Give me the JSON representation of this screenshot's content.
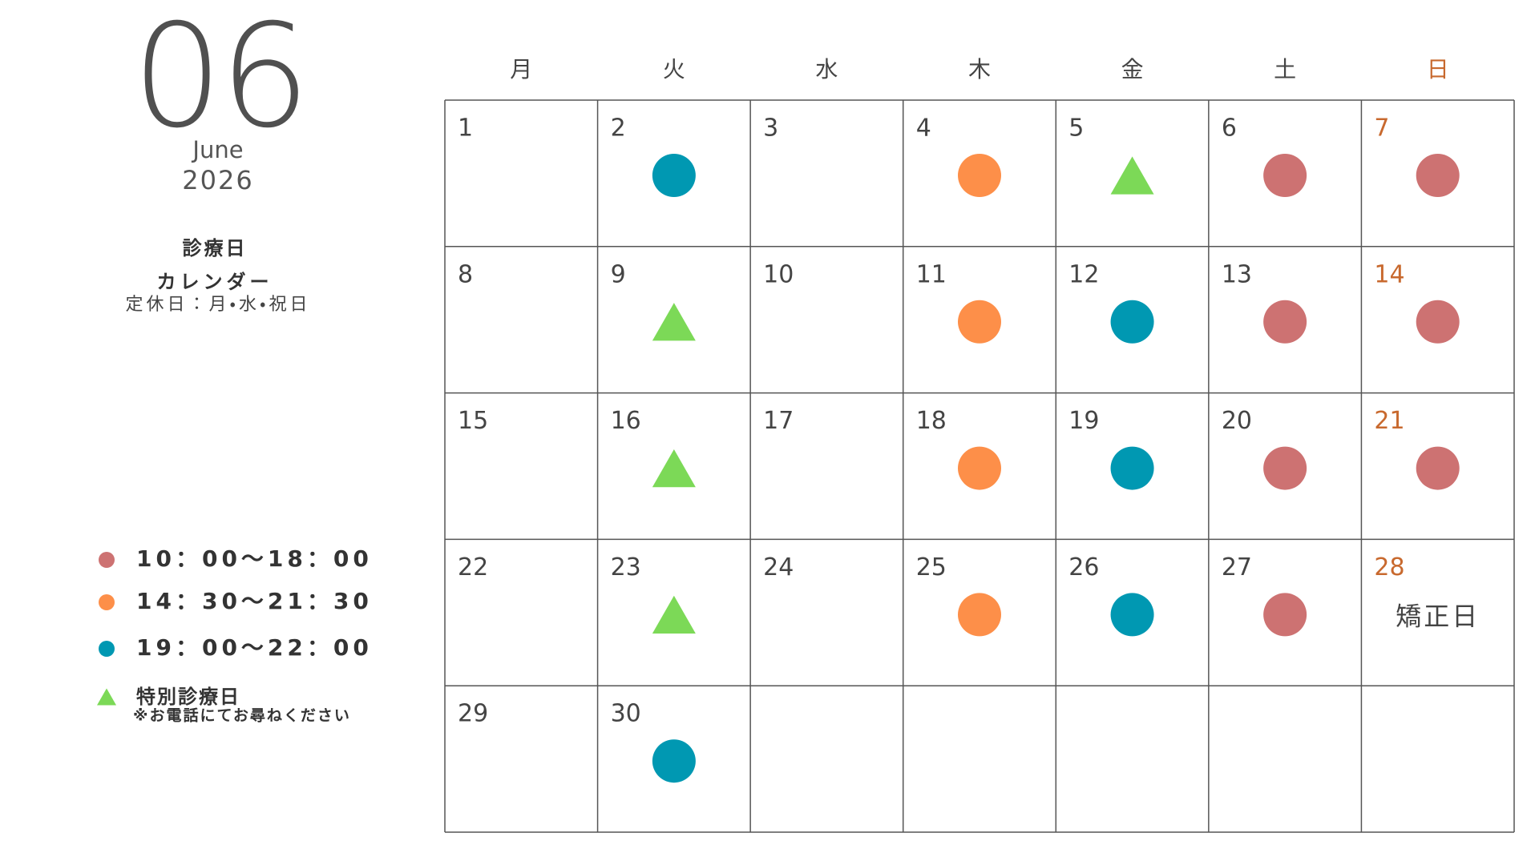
{
  "header": {
    "month": "06",
    "month_name": "June",
    "year": "2026",
    "title_line1": "診療日",
    "title_line2": "カレンダー",
    "closed_days": "定休日：月・水・祝日"
  },
  "legend": [
    {
      "label": "10：00〜18：00",
      "shape": "circle",
      "color": "#cd7272",
      "days": [
        6,
        7,
        13,
        14,
        20,
        21,
        27
      ]
    },
    {
      "label": "14：30〜21：30",
      "shape": "circle",
      "color": "#fd8f49",
      "days": [
        4,
        11,
        18,
        25
      ]
    },
    {
      "label": "19：00〜22：00",
      "shape": "circle",
      "color": "#0098b2",
      "days": [
        2,
        12,
        19,
        26,
        30
      ]
    },
    {
      "label": "特別診療日",
      "note": "※お電話にてお尋ねください",
      "shape": "triangle",
      "color": "#7cd957",
      "days": [
        5,
        9,
        16,
        23
      ]
    }
  ],
  "calendar": {
    "weekdays": [
      "月",
      "火",
      "水",
      "木",
      "金",
      "土",
      "日"
    ],
    "holiday_color": "#c8692e",
    "rows": [
      [
        "1",
        "2",
        "3",
        "4",
        "5",
        "6",
        "7"
      ],
      [
        "8",
        "9",
        "10",
        "11",
        "12",
        "13",
        "14"
      ],
      [
        "15",
        "16",
        "17",
        "18",
        "19",
        "20",
        "21"
      ],
      [
        "22",
        "23",
        "24",
        "25",
        "26",
        "27",
        "28"
      ],
      [
        "29",
        "30",
        null,
        null,
        null,
        null,
        null
      ]
    ],
    "notes": [
      {
        "day": 28,
        "text": "矯正日"
      }
    ]
  }
}
